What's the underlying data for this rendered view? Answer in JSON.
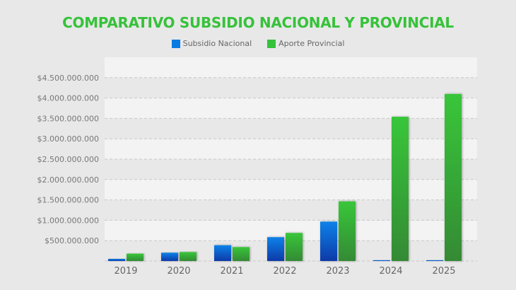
{
  "chart_data": {
    "type": "bar",
    "title": "COMPARATIVO SUBSIDIO NACIONAL Y PROVINCIAL",
    "xlabel": "",
    "ylabel": "",
    "categories": [
      "2019",
      "2020",
      "2021",
      "2022",
      "2023",
      "2024",
      "2025"
    ],
    "series": [
      {
        "name": "Subsidio Nacional",
        "color": "#0a7be0",
        "values": [
          52000000,
          203000000,
          387000000,
          585000000,
          967000000,
          20000000,
          20000000
        ]
      },
      {
        "name": "Aporte Provincial",
        "color": "#36c23a",
        "values": [
          180000000,
          220000000,
          342000000,
          689000000,
          1464000000,
          3540000000,
          4100000000
        ]
      }
    ],
    "ylim": [
      0,
      5000000000
    ],
    "yticks": [
      500000000,
      1000000000,
      1500000000,
      2000000000,
      2500000000,
      3000000000,
      3500000000,
      4000000000,
      4500000000
    ],
    "ytick_labels": [
      "$500.000.000",
      "$1.000.000.000",
      "$1.500.000.000",
      "$2.000.000.000",
      "$2.500.000.000",
      "$3.000.000.000",
      "$3.500.000.000",
      "$4.000.000.000",
      "$4.500.000.000"
    ],
    "grid": true,
    "legend_position": "top"
  }
}
